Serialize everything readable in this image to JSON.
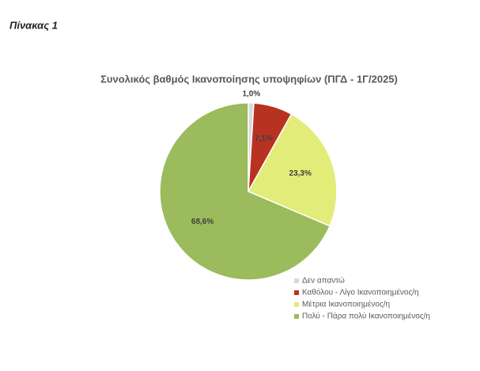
{
  "heading": "Πίνακας 1",
  "chart_data": {
    "type": "pie",
    "title": "Συνολικός βαθμός Ικανοποίησης υποψηφίων (ΠΓΔ - 1Γ/2025)",
    "categories": [
      "Δεν απαντώ",
      "Καθόλου - Λίγο Ικανοποιημένος/η",
      "Μέτρια Ικανοποιημένος/η",
      "Πολύ - Πάρα πολύ Ικανοποιημένος/η"
    ],
    "values": [
      1.0,
      7.1,
      23.3,
      68.6
    ],
    "value_labels": [
      "1,0%",
      "7,1%",
      "23,3%",
      "68,6%"
    ],
    "colors": [
      "#d9d9d9",
      "#b83222",
      "#e2ec78",
      "#9bbb5c"
    ],
    "legend": "bottom-right"
  }
}
